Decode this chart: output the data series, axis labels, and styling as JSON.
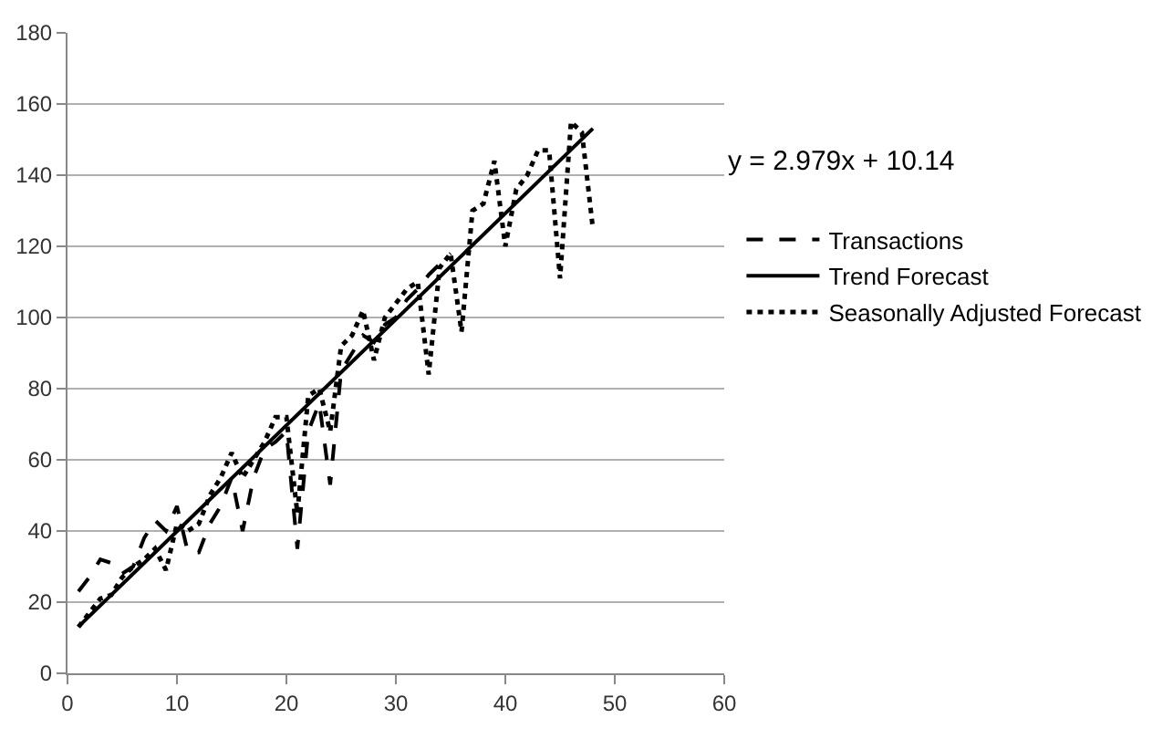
{
  "chart_data": {
    "type": "line",
    "xlim": [
      0,
      60
    ],
    "xticks": [
      0,
      10,
      20,
      30,
      40,
      50,
      60
    ],
    "ylim": [
      0,
      180
    ],
    "yticks": [
      0,
      20,
      40,
      60,
      80,
      100,
      120,
      140,
      160,
      180
    ],
    "grid": "y",
    "legend": "right",
    "marker": "none",
    "annotations": [
      "y = 2.979x + 10.14"
    ],
    "series": [
      {
        "name": "Transactions",
        "color": "#000000",
        "line_style": "dashed",
        "x": [
          1,
          2,
          3,
          4,
          5,
          6,
          7,
          8,
          9,
          10,
          11,
          12,
          13,
          14,
          15,
          16,
          17,
          18,
          19,
          20,
          21,
          22,
          23,
          24,
          25,
          26,
          27,
          28,
          29,
          30,
          31,
          32,
          33,
          34,
          35
        ],
        "values": [
          23,
          27,
          32,
          31,
          28,
          30,
          38,
          43,
          40,
          47,
          34,
          34,
          42,
          47,
          55,
          40,
          55,
          63,
          65,
          68,
          35,
          68,
          76,
          53,
          85,
          90,
          95,
          93,
          98,
          100,
          105,
          108,
          112,
          115,
          118
        ]
      },
      {
        "name": "Trend Forecast",
        "color": "#000000",
        "line_style": "solid",
        "x": [
          1,
          48
        ],
        "values": [
          13.1,
          153.1
        ]
      },
      {
        "name": "Seasonally Adjusted Forecast",
        "color": "#000000",
        "line_style": "dotted",
        "x": [
          1,
          2,
          3,
          4,
          5,
          6,
          7,
          8,
          9,
          10,
          11,
          12,
          13,
          14,
          15,
          16,
          17,
          18,
          19,
          20,
          21,
          22,
          23,
          24,
          25,
          26,
          27,
          28,
          29,
          30,
          31,
          32,
          33,
          34,
          35,
          36,
          37,
          38,
          39,
          40,
          41,
          42,
          43,
          44,
          45,
          46,
          47,
          48
        ],
        "values": [
          13,
          17,
          21,
          22,
          27,
          30,
          32,
          35,
          29,
          42,
          40,
          42,
          50,
          55,
          62,
          55,
          60,
          65,
          72,
          72,
          45,
          78,
          80,
          68,
          92,
          95,
          102,
          88,
          100,
          104,
          108,
          110,
          84,
          114,
          118,
          96,
          130,
          132,
          144,
          120,
          136,
          140,
          147,
          147,
          111,
          155,
          152,
          125
        ]
      }
    ]
  }
}
